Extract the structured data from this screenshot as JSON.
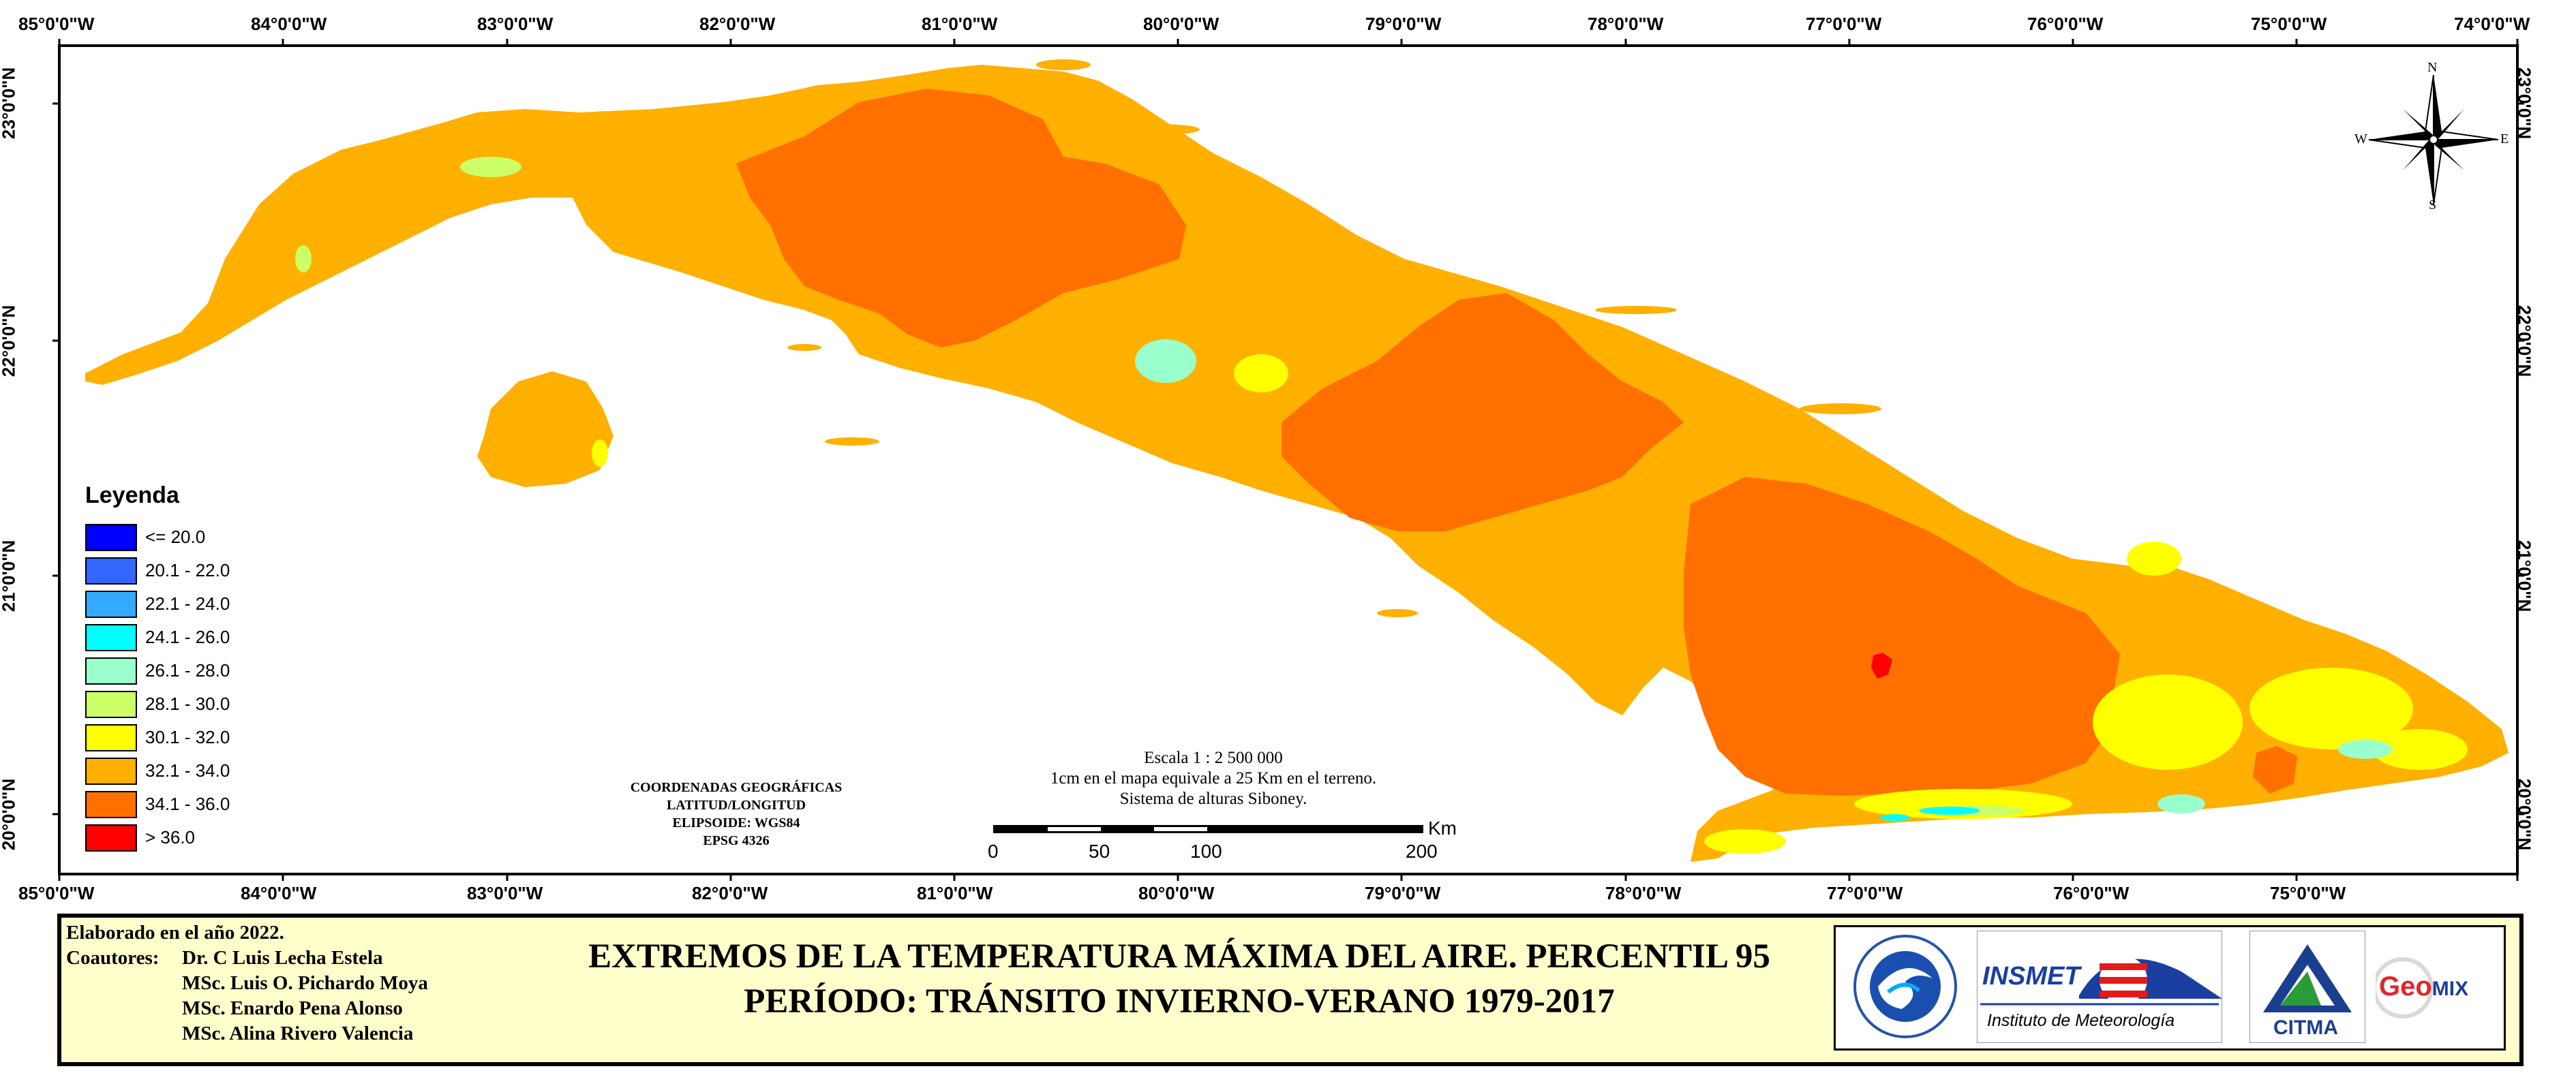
{
  "map": {
    "top_ticks": [
      "85°0'0\"W",
      "84°0'0\"W",
      "83°0'0\"W",
      "82°0'0\"W",
      "81°0'0\"W",
      "80°0'0\"W",
      "79°0'0\"W",
      "78°0'0\"W",
      "77°0'0\"W",
      "76°0'0\"W",
      "75°0'0\"W",
      "74°0'0\"W"
    ],
    "bottom_ticks": [
      "85°0'0\"W",
      "84°0'0\"W",
      "83°0'0\"W",
      "82°0'0\"W",
      "81°0'0\"W",
      "80°0'0\"W",
      "79°0'0\"W",
      "78°0'0\"W",
      "77°0'0\"W",
      "76°0'0\"W",
      "75°0'0\"W"
    ],
    "lat_ticks": [
      "23°0'0\"N",
      "22°0'0\"N",
      "21°0'0\"N",
      "20°0'0\"N"
    ],
    "colors": {
      "land_base": "#ffb000",
      "hot": "#ff7000",
      "extreme": "#ff0000",
      "warm": "#ffff00",
      "mild": "#ccff66",
      "cool": "#99ffcc",
      "cyan": "#00ffff",
      "sea": "#ffffff"
    }
  },
  "compass": {
    "n": "N",
    "s": "S",
    "e": "E",
    "w": "W"
  },
  "legend": {
    "title": "Leyenda",
    "items": [
      {
        "label": "<= 20.0",
        "color": "#0000ff"
      },
      {
        "label": "20.1 - 22.0",
        "color": "#3366ff"
      },
      {
        "label": "22.1 - 24.0",
        "color": "#33aaff"
      },
      {
        "label": "24.1 - 26.0",
        "color": "#00ffff"
      },
      {
        "label": "26.1 - 28.0",
        "color": "#99ffcc"
      },
      {
        "label": "28.1 - 30.0",
        "color": "#ccff66"
      },
      {
        "label": "30.1 - 32.0",
        "color": "#ffff00"
      },
      {
        "label": "32.1 - 34.0",
        "color": "#ffb000"
      },
      {
        "label": "34.1 - 36.0",
        "color": "#ff7000"
      },
      {
        "label": "> 36.0",
        "color": "#ff0000"
      }
    ]
  },
  "coordinates": {
    "line1": "COORDENADAS GEOGRÁFICAS",
    "line2": "LATITUD/LONGITUD",
    "line3": "ELIPSOIDE: WGS84",
    "line4": "EPSG 4326"
  },
  "scale": {
    "line1": "Escala 1 : 2 500 000",
    "line2": "1cm en el mapa equivale a 25 Km en el terreno.",
    "line3": "Sistema de alturas Siboney.",
    "unit": "Km",
    "labels": [
      "0",
      "50",
      "100",
      "200"
    ]
  },
  "footer": {
    "made": "Elaborado en el año 2022.",
    "coauthors_label": "Coautores:",
    "authors": [
      "Dr. C Luis Lecha Estela",
      "MSc. Luis O. Pichardo Moya",
      "MSc. Enardo Pena Alonso",
      "MSc. Alina Rivero Valencia"
    ],
    "title_line1": "EXTREMOS DE LA TEMPERATURA MÁXIMA DEL AIRE. PERCENTIL 95",
    "title_line2": "PERÍODO: TRÁNSITO INVIERNO-VERANO 1979-2017",
    "logos": {
      "insmet": "INSMET",
      "insmet_sub": "Instituto de Meteorología",
      "citma": "CITMA",
      "geomix_geo": "Geo",
      "geomix_mix": "MIX"
    }
  }
}
